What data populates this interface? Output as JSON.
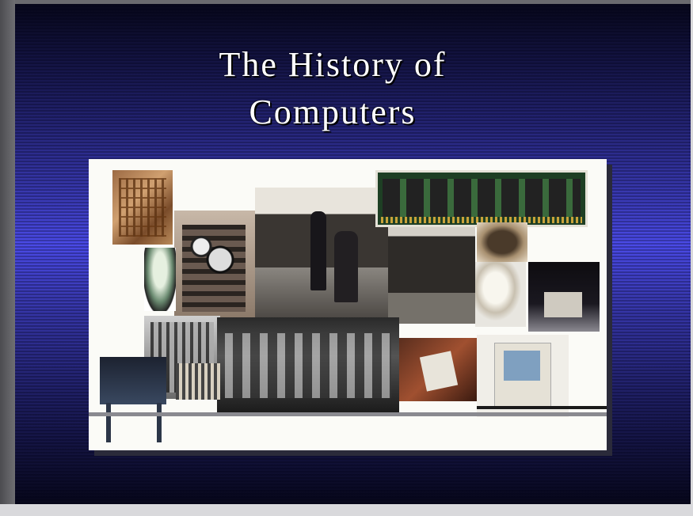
{
  "slide": {
    "title": "The History of\nComputers"
  },
  "collage": {
    "image_names": [
      "difference-engine-photo",
      "vacuum-tube-photo",
      "relay-computer-photo",
      "mainframe-operators-photo",
      "memory-module-photo",
      "microchip-photo",
      "light-bulb-photo",
      "personal-computer-photo",
      "eniac-photo",
      "univac-panel-photo",
      "intel-chip-tablet-photo",
      "macintosh-photo",
      "tabulating-machine-photo"
    ]
  }
}
